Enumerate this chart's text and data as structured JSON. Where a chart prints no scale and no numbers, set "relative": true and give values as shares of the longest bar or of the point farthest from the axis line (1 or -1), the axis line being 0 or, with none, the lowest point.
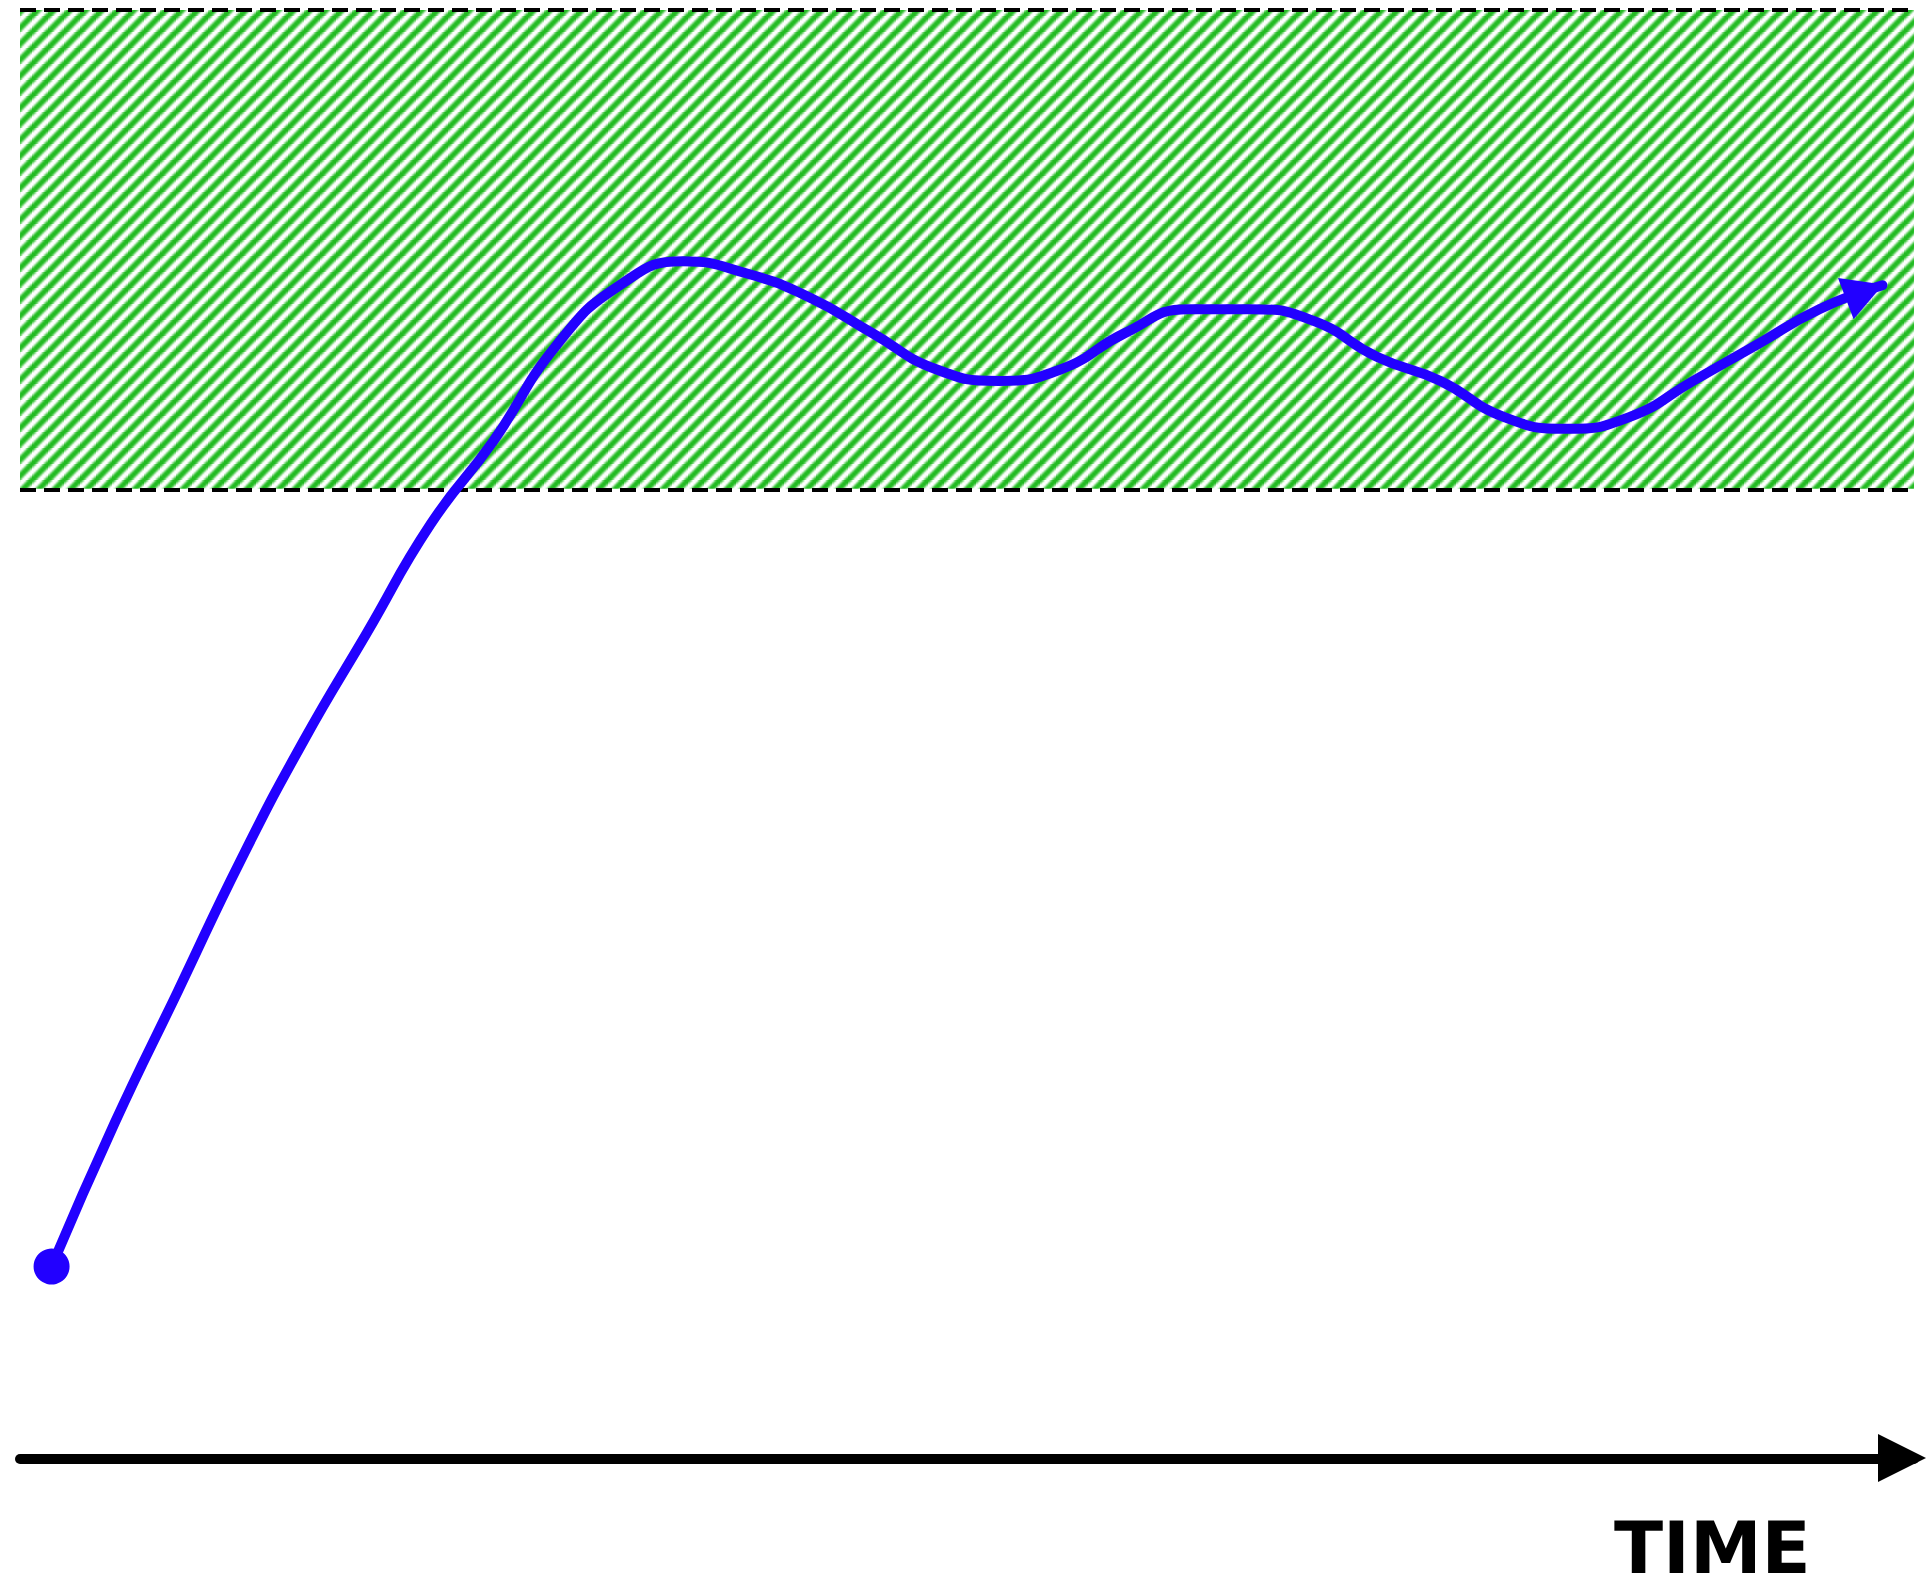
{
  "chart_data": {
    "type": "line",
    "relative": true,
    "xlabel": "TIME",
    "categories": [
      null,
      null,
      null,
      null,
      null,
      null,
      null,
      null,
      null,
      null,
      null,
      null,
      null,
      null,
      null,
      null,
      null,
      null,
      null,
      null,
      null,
      null,
      null,
      null,
      null,
      null,
      null,
      null,
      null,
      null
    ],
    "series": [
      {
        "color": "#2200ff",
        "values": [
          0.16,
          0.28,
          0.39,
          0.5,
          0.6,
          0.69,
          0.78,
          0.85,
          0.93,
          0.98,
          1.0,
          0.99,
          0.97,
          0.94,
          0.91,
          0.9,
          0.91,
          0.94,
          0.96,
          0.96,
          0.95,
          0.92,
          0.9,
          0.87,
          0.86,
          0.87,
          0.9,
          0.93,
          0.96,
          0.98
        ]
      }
    ],
    "bands": [
      {
        "axis": "y",
        "from": 0.81,
        "to": 1.21,
        "color": "#22bb22"
      }
    ],
    "ref_lines": [
      {
        "axis": "y",
        "value": 0.81,
        "color": "#000000",
        "line_style": "dashed"
      },
      {
        "axis": "y",
        "value": 1.21,
        "color": "#000000",
        "line_style": "dashed"
      }
    ],
    "grid": false,
    "line_style": "solid"
  }
}
